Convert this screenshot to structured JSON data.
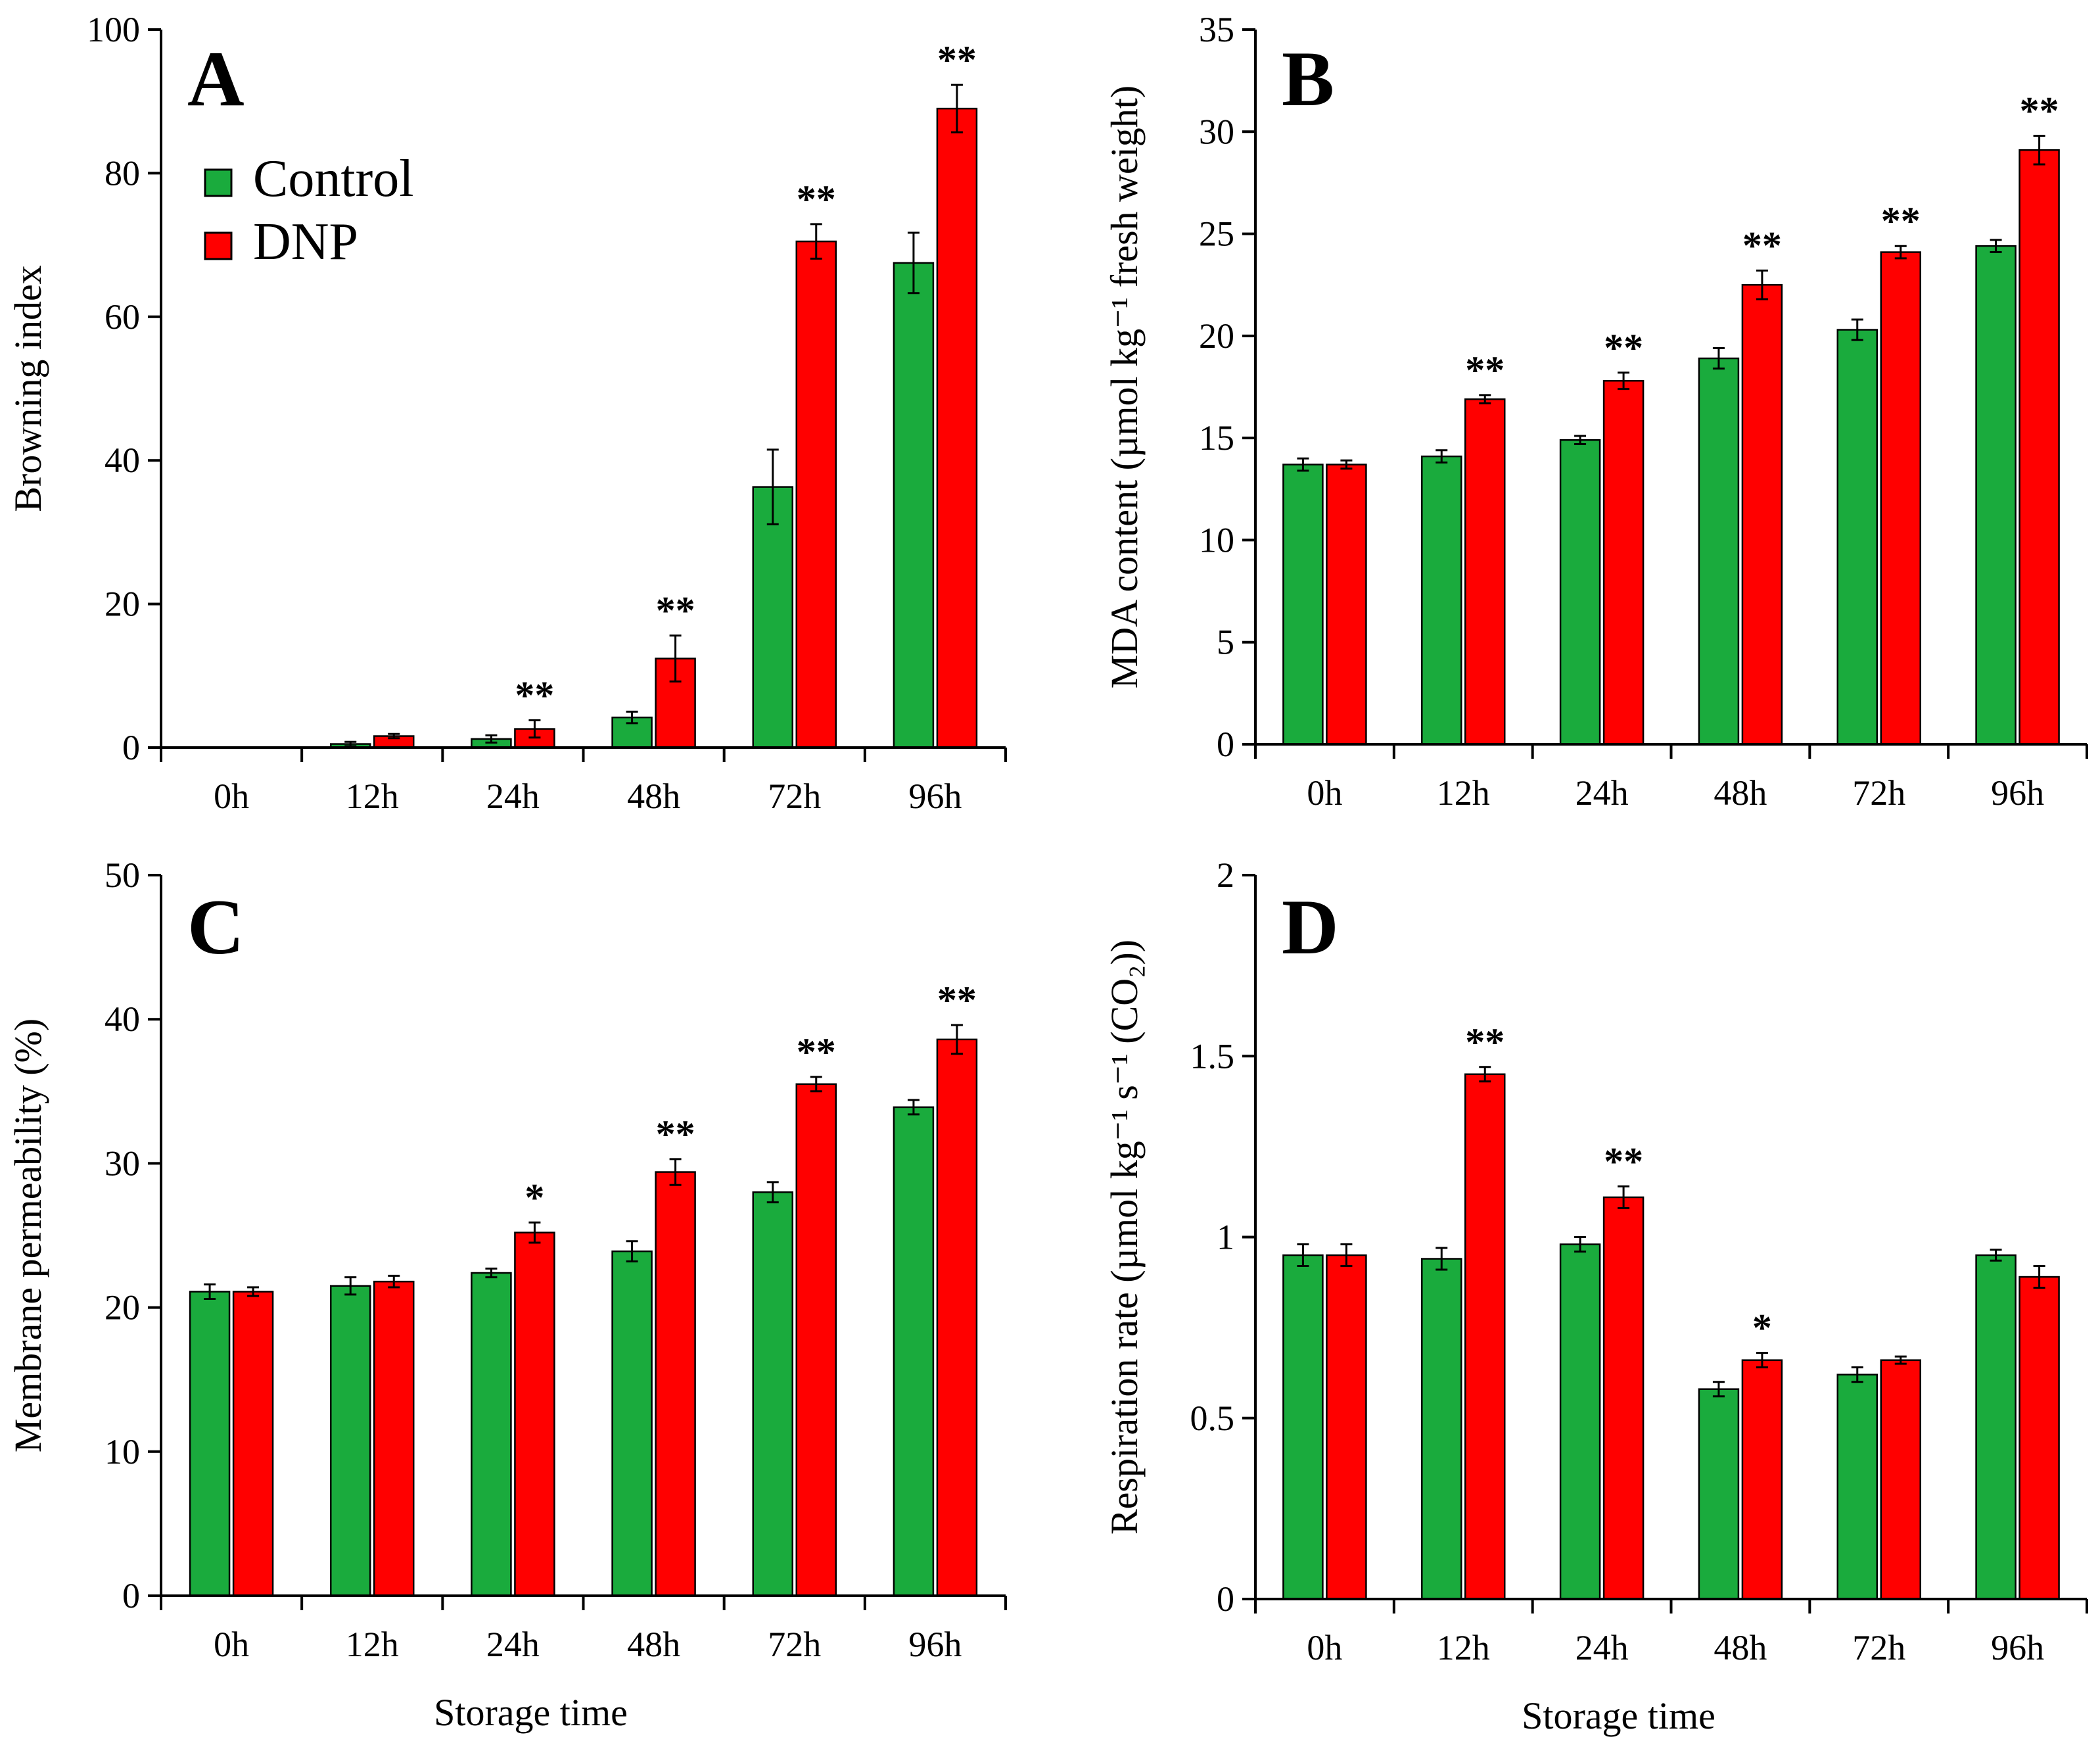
{
  "figure": {
    "colors": {
      "control": "#1aab3d",
      "dnp": "#ff0000"
    },
    "legend": {
      "entries": [
        {
          "name": "Control",
          "color": "#1aab3d"
        },
        {
          "name": "DNP",
          "color": "#ff0000"
        }
      ]
    }
  },
  "chart_data": [
    {
      "id": "A",
      "type": "bar",
      "panel_label": "A",
      "categories": [
        "0h",
        "12h",
        "24h",
        "48h",
        "72h",
        "96h"
      ],
      "xlabel": "",
      "ylabel": "Browning index",
      "ylim": [
        0,
        100
      ],
      "yticks": [
        "0",
        "20",
        "40",
        "60",
        "80",
        "100"
      ],
      "legend_position": "top-left",
      "series": [
        {
          "name": "Control",
          "values": [
            0,
            0.5,
            1.2,
            4.2,
            36.3,
            67.5
          ],
          "errors": [
            0,
            0.3,
            0.5,
            0.8,
            5.2,
            4.2
          ]
        },
        {
          "name": "DNP",
          "values": [
            0,
            1.6,
            2.6,
            12.4,
            70.5,
            89.0
          ],
          "errors": [
            0,
            0.3,
            1.2,
            3.2,
            2.4,
            3.3
          ]
        }
      ],
      "significance": [
        "",
        "",
        "**",
        "**",
        "**",
        "**"
      ]
    },
    {
      "id": "B",
      "type": "bar",
      "panel_label": "B",
      "categories": [
        "0h",
        "12h",
        "24h",
        "48h",
        "72h",
        "96h"
      ],
      "xlabel": "",
      "ylabel": "MDA content (µmol kg⁻¹ fresh weight)",
      "ylim": [
        0,
        35
      ],
      "yticks": [
        "0",
        "5",
        "10",
        "15",
        "20",
        "25",
        "30",
        "35"
      ],
      "series": [
        {
          "name": "Control",
          "values": [
            13.7,
            14.1,
            14.9,
            18.9,
            20.3,
            24.4
          ],
          "errors": [
            0.3,
            0.3,
            0.2,
            0.5,
            0.5,
            0.3
          ]
        },
        {
          "name": "DNP",
          "values": [
            13.7,
            16.9,
            17.8,
            22.5,
            24.1,
            29.1
          ],
          "errors": [
            0.2,
            0.2,
            0.4,
            0.7,
            0.3,
            0.7
          ]
        }
      ],
      "significance": [
        "",
        "**",
        "**",
        "**",
        "**",
        "**"
      ]
    },
    {
      "id": "C",
      "type": "bar",
      "panel_label": "C",
      "categories": [
        "0h",
        "12h",
        "24h",
        "48h",
        "72h",
        "96h"
      ],
      "xlabel": "Storage time",
      "ylabel": "Membrane permeability (%)",
      "ylim": [
        0,
        50
      ],
      "yticks": [
        "0",
        "10",
        "20",
        "30",
        "40",
        "50"
      ],
      "series": [
        {
          "name": "Control",
          "values": [
            21.1,
            21.5,
            22.4,
            23.9,
            28.0,
            33.9
          ],
          "errors": [
            0.5,
            0.6,
            0.3,
            0.7,
            0.7,
            0.5
          ]
        },
        {
          "name": "DNP",
          "values": [
            21.1,
            21.8,
            25.2,
            29.4,
            35.5,
            38.6
          ],
          "errors": [
            0.3,
            0.4,
            0.7,
            0.9,
            0.5,
            1.0
          ]
        }
      ],
      "significance": [
        "",
        "",
        "*",
        "**",
        "**",
        "**"
      ]
    },
    {
      "id": "D",
      "type": "bar",
      "panel_label": "D",
      "categories": [
        "0h",
        "12h",
        "24h",
        "48h",
        "72h",
        "96h"
      ],
      "xlabel": "Storage time",
      "ylabel": "Respiration rate (µmol kg⁻¹ s⁻¹ (CO₂))",
      "ylim": [
        0,
        2
      ],
      "yticks": [
        "0",
        "0.5",
        "1",
        "1.5",
        "2"
      ],
      "series": [
        {
          "name": "Control",
          "values": [
            0.95,
            0.94,
            0.98,
            0.58,
            0.62,
            0.95
          ],
          "errors": [
            0.03,
            0.03,
            0.02,
            0.02,
            0.02,
            0.015
          ]
        },
        {
          "name": "DNP",
          "values": [
            0.95,
            1.45,
            1.11,
            0.66,
            0.66,
            0.89
          ],
          "errors": [
            0.03,
            0.02,
            0.03,
            0.02,
            0.01,
            0.03
          ]
        }
      ],
      "significance": [
        "",
        "**",
        "**",
        "*",
        "",
        ""
      ]
    }
  ]
}
